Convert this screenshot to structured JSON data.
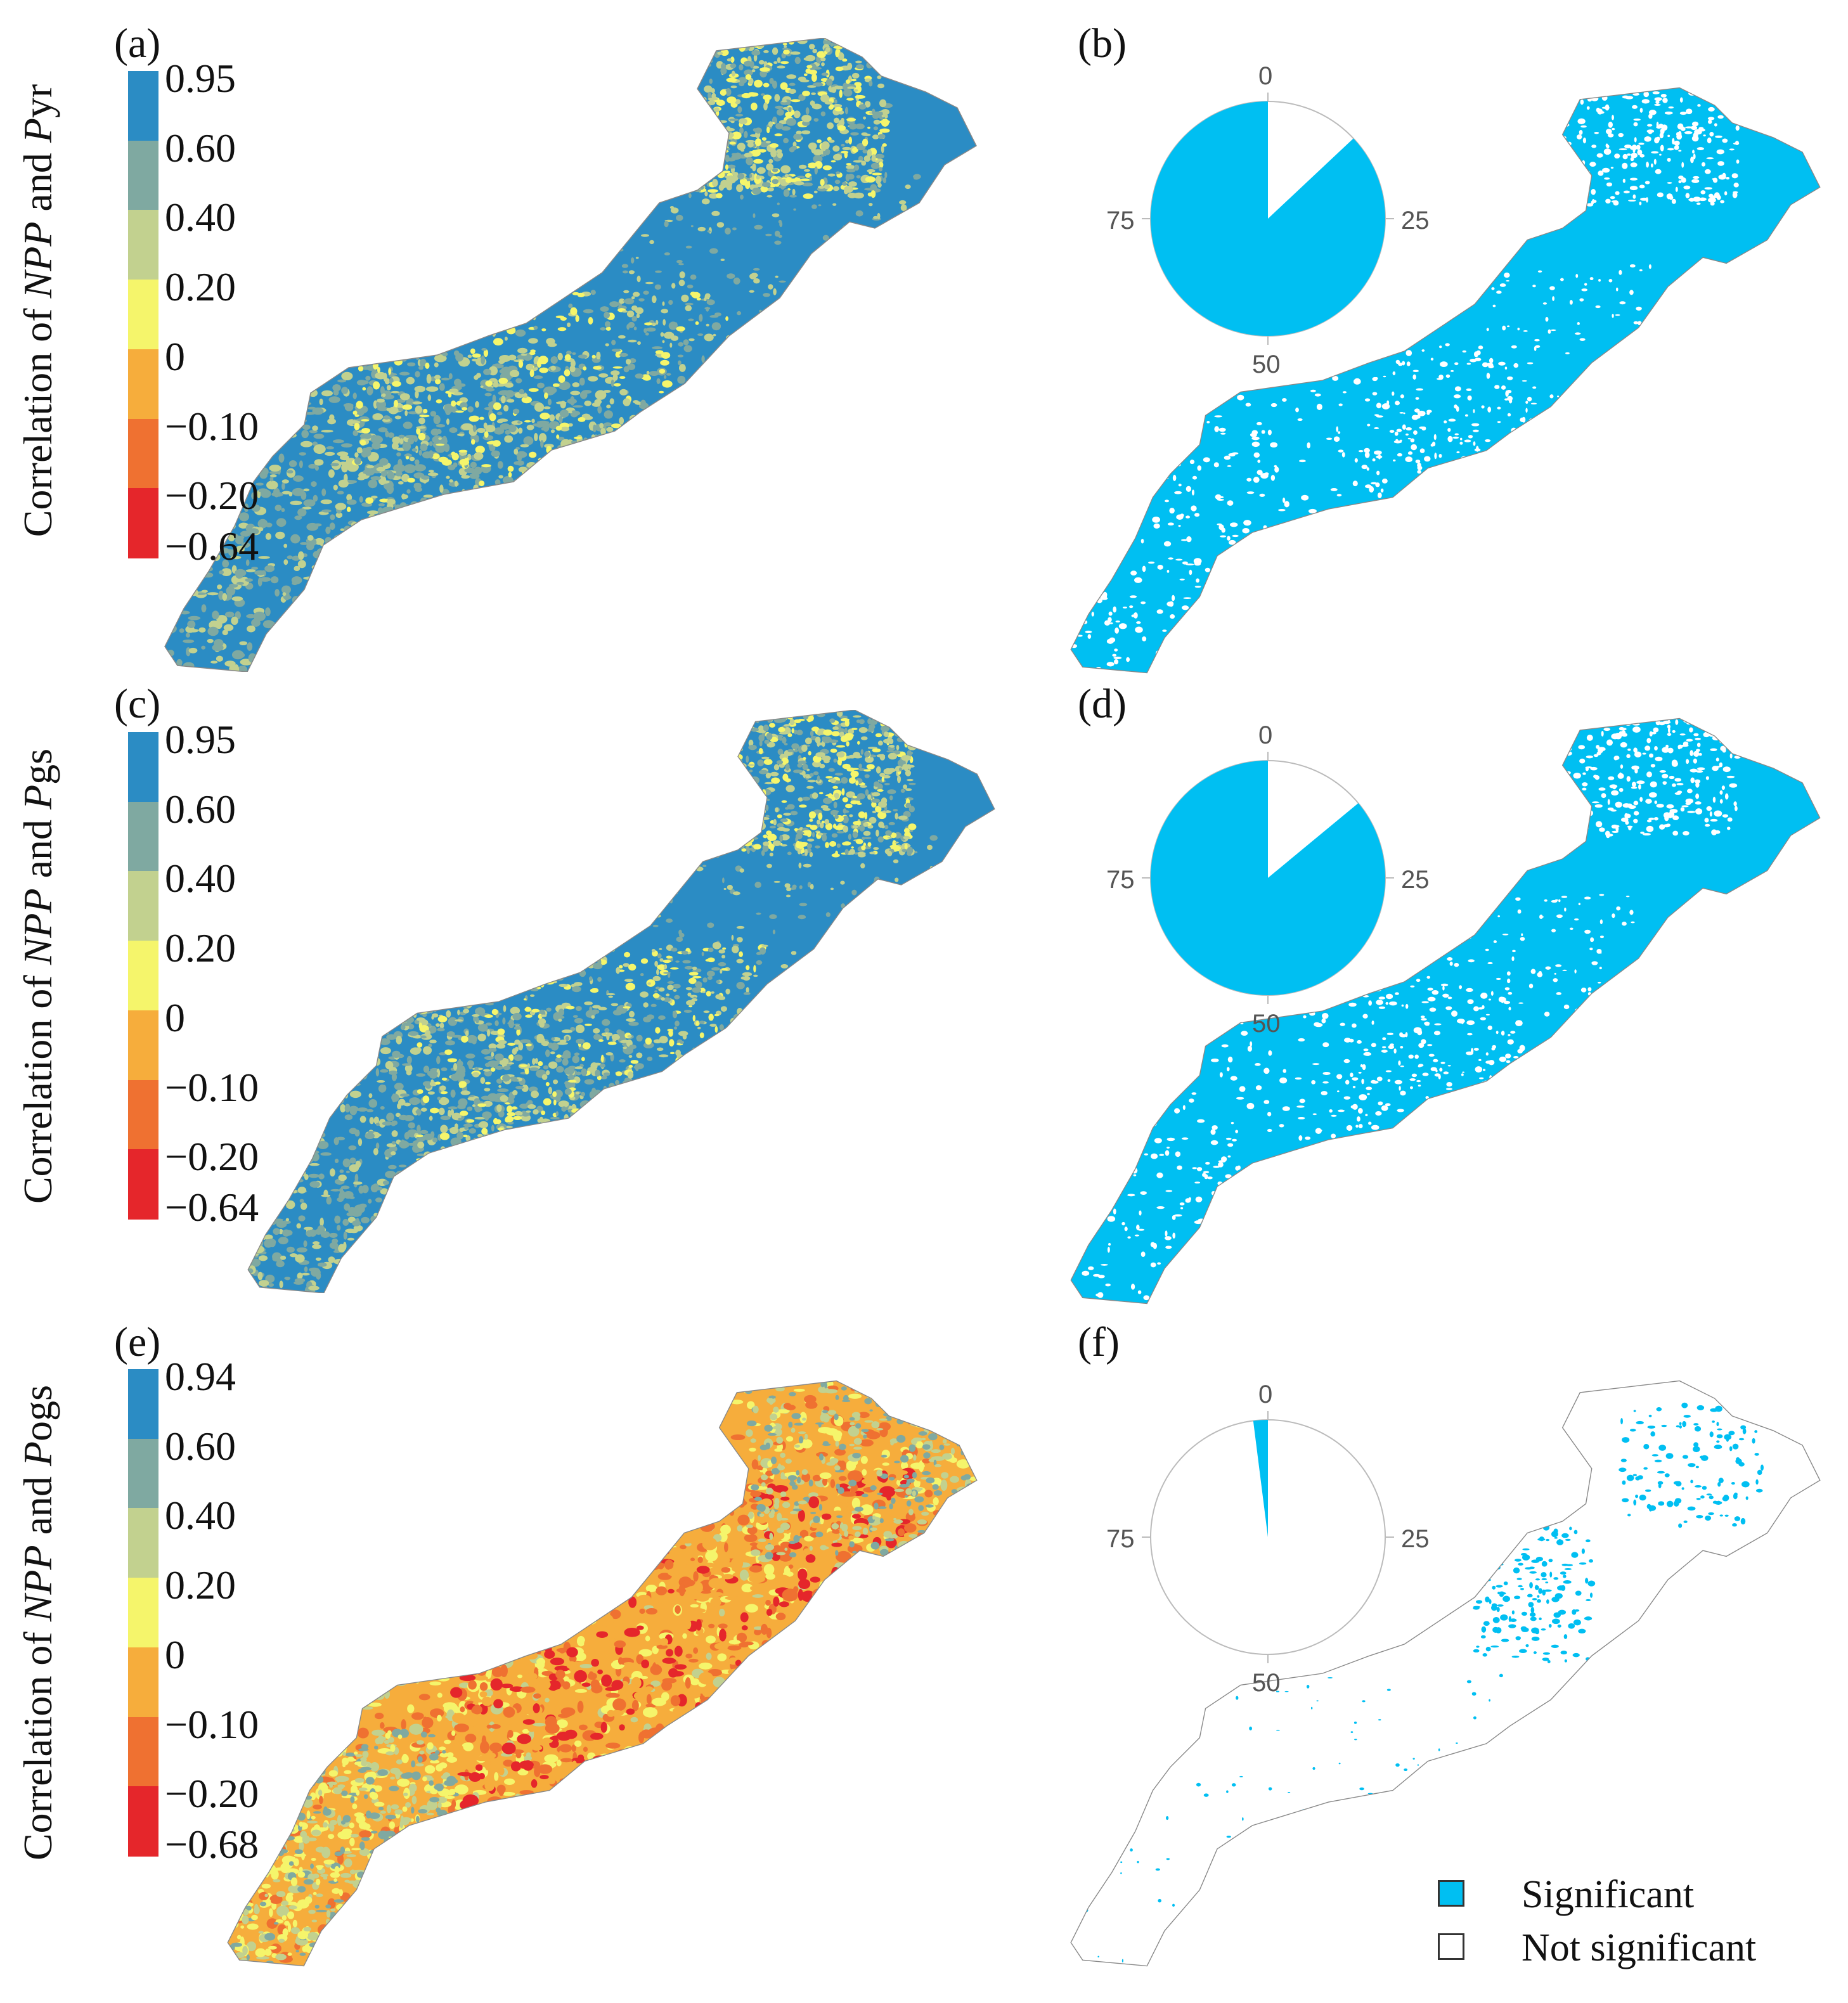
{
  "panels": [
    {
      "id": "a",
      "label": "(a)",
      "type": "correlation",
      "ylabel": {
        "prefix": "Correlation of ",
        "npp": "NPP",
        "mid": " and ",
        "p": "P",
        "suffix": "yr"
      },
      "legend_ticks": [
        "0.95",
        "0.60",
        "0.40",
        "0.20",
        "0",
        "−0.10",
        "−0.20",
        "−0.64"
      ],
      "map_scheme": "blue-dominant"
    },
    {
      "id": "b",
      "label": "(b)",
      "type": "significance",
      "pie": {
        "significant_percent": 87,
        "ticks": [
          "0",
          "25",
          "50",
          "75"
        ]
      }
    },
    {
      "id": "c",
      "label": "(c)",
      "type": "correlation",
      "ylabel": {
        "prefix": "Correlation of ",
        "npp": "NPP",
        "mid": " and ",
        "p": "P",
        "suffix": "gs"
      },
      "legend_ticks": [
        "0.95",
        "0.60",
        "0.40",
        "0.20",
        "0",
        "−0.10",
        "−0.20",
        "−0.64"
      ],
      "map_scheme": "blue-dominant"
    },
    {
      "id": "d",
      "label": "(d)",
      "type": "significance",
      "pie": {
        "significant_percent": 86,
        "ticks": [
          "0",
          "25",
          "50",
          "75"
        ]
      }
    },
    {
      "id": "e",
      "label": "(e)",
      "type": "correlation",
      "ylabel": {
        "prefix": "Correlation of ",
        "npp": "NPP",
        "mid": " and ",
        "p": "P",
        "suffix": "ogs"
      },
      "legend_ticks": [
        "0.94",
        "0.60",
        "0.40",
        "0.20",
        "0",
        "−0.10",
        "−0.20",
        "−0.68"
      ],
      "map_scheme": "orange-dominant"
    },
    {
      "id": "f",
      "label": "(f)",
      "type": "significance",
      "pie": {
        "significant_percent": 2,
        "ticks": [
          "0",
          "25",
          "50",
          "75"
        ]
      }
    }
  ],
  "legend_colors": [
    "#2b8cc4",
    "#7fa9a1",
    "#c2d18f",
    "#f5f56b",
    "#f6ad3c",
    "#ef7131",
    "#e5262b"
  ],
  "significance_colors": {
    "significant": "#00bff2",
    "not_significant": "#ffffff"
  },
  "key": {
    "significant": "Significant",
    "not_significant": "Not significant"
  }
}
